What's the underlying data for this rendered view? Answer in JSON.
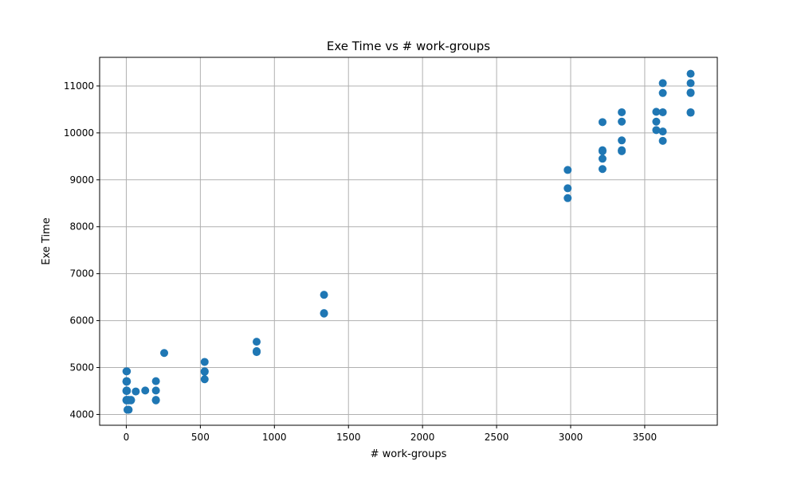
{
  "chart_data": {
    "type": "scatter",
    "title": "Exe Time vs # work-groups",
    "xlabel": "# work-groups",
    "ylabel": "Exe Time",
    "xlim": [
      -180,
      3990
    ],
    "ylim": [
      3770,
      11610
    ],
    "xticks": [
      0,
      500,
      1000,
      1500,
      2000,
      2500,
      3000,
      3500
    ],
    "yticks": [
      4000,
      5000,
      6000,
      7000,
      8000,
      9000,
      10000,
      11000
    ],
    "grid": true,
    "marker_color": "#1f77b4",
    "series": [
      {
        "points": [
          [
            1,
            4920
          ],
          [
            1,
            4710
          ],
          [
            1,
            4700
          ],
          [
            1,
            4510
          ],
          [
            1,
            4500
          ],
          [
            1,
            4310
          ],
          [
            1,
            4300
          ],
          [
            4,
            4920
          ],
          [
            4,
            4710
          ],
          [
            4,
            4700
          ],
          [
            4,
            4510
          ],
          [
            4,
            4500
          ],
          [
            4,
            4310
          ],
          [
            4,
            4300
          ],
          [
            8,
            4100
          ],
          [
            16,
            4100
          ],
          [
            16,
            4310
          ],
          [
            16,
            4300
          ],
          [
            32,
            4310
          ],
          [
            32,
            4300
          ],
          [
            64,
            4490
          ],
          [
            128,
            4510
          ],
          [
            200,
            4710
          ],
          [
            200,
            4510
          ],
          [
            200,
            4310
          ],
          [
            200,
            4300
          ],
          [
            256,
            5310
          ],
          [
            529,
            5120
          ],
          [
            529,
            4920
          ],
          [
            529,
            4910
          ],
          [
            529,
            4750
          ],
          [
            880,
            5550
          ],
          [
            880,
            5350
          ],
          [
            880,
            5330
          ],
          [
            1335,
            6550
          ],
          [
            1335,
            6160
          ],
          [
            1335,
            6150
          ],
          [
            2980,
            9210
          ],
          [
            2980,
            8820
          ],
          [
            2980,
            8610
          ],
          [
            3215,
            10230
          ],
          [
            3215,
            9630
          ],
          [
            3215,
            9610
          ],
          [
            3215,
            9450
          ],
          [
            3215,
            9230
          ],
          [
            3345,
            10440
          ],
          [
            3345,
            10240
          ],
          [
            3345,
            9840
          ],
          [
            3345,
            9630
          ],
          [
            3345,
            9610
          ],
          [
            3578,
            10450
          ],
          [
            3578,
            10240
          ],
          [
            3578,
            10060
          ],
          [
            3622,
            11060
          ],
          [
            3622,
            10850
          ],
          [
            3622,
            10440
          ],
          [
            3622,
            10030
          ],
          [
            3622,
            9830
          ],
          [
            3810,
            11260
          ],
          [
            3810,
            11060
          ],
          [
            3810,
            10860
          ],
          [
            3810,
            10850
          ],
          [
            3810,
            10440
          ],
          [
            3810,
            10430
          ]
        ]
      }
    ]
  }
}
